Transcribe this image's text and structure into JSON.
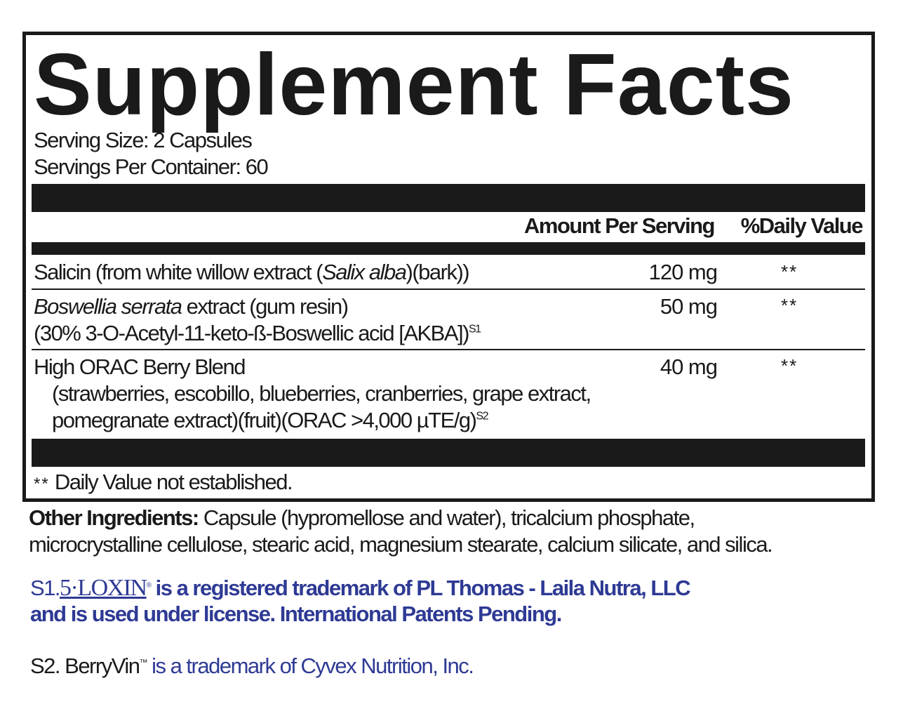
{
  "title": "Supplement Facts",
  "serving_size": "Serving Size: 2 Capsules",
  "servings_per_container": "Servings Per Container: 60",
  "header": {
    "amount": "Amount Per Serving",
    "daily_value": "%Daily Value"
  },
  "rows": [
    {
      "pre": "Salicin (from white willow extract (",
      "italic": "Salix alba",
      "post": ")(bark))",
      "amount": "120 mg",
      "dv": "**"
    },
    {
      "italic": "Boswellia serrata",
      "post": " extract (gum resin)",
      "line2": "(30% 3-O-Acetyl-11-keto-ß-Boswellic acid [AKBA])",
      "sup": "S1",
      "amount": "50 mg",
      "dv": "**"
    },
    {
      "name": "High ORAC Berry Blend",
      "line2": "(strawberries, escobillo, blueberries, cranberries, grape extract,",
      "line3": "pomegranate extract)(fruit)(ORAC >4,000 µTE/g)",
      "sup": "S2",
      "amount": "40 mg",
      "dv": "**"
    }
  ],
  "footnote": {
    "mark": "**",
    "text": "Daily Value not established."
  },
  "other": {
    "label": "Other Ingredients:",
    "line1": " Capsule (hypromellose and water), tricalcium phosphate,",
    "line2": "microcrystalline cellulose, stearic acid, magnesium stearate, calcium silicate, and silica."
  },
  "s1": {
    "prefix": "S1.",
    "logo": "5·LOXIN",
    "reg": "®",
    "line1": " is a registered trademark of PL Thomas - Laila Nutra, LLC",
    "line2": "and is used under license. International Patents Pending."
  },
  "s2": {
    "prefix": "S2. BerryVin",
    "tm": "™",
    "text": " is a trademark of Cyvex Nutrition, Inc."
  },
  "colors": {
    "text": "#1a1a1a",
    "footnote_blue": "#2e3a94"
  }
}
